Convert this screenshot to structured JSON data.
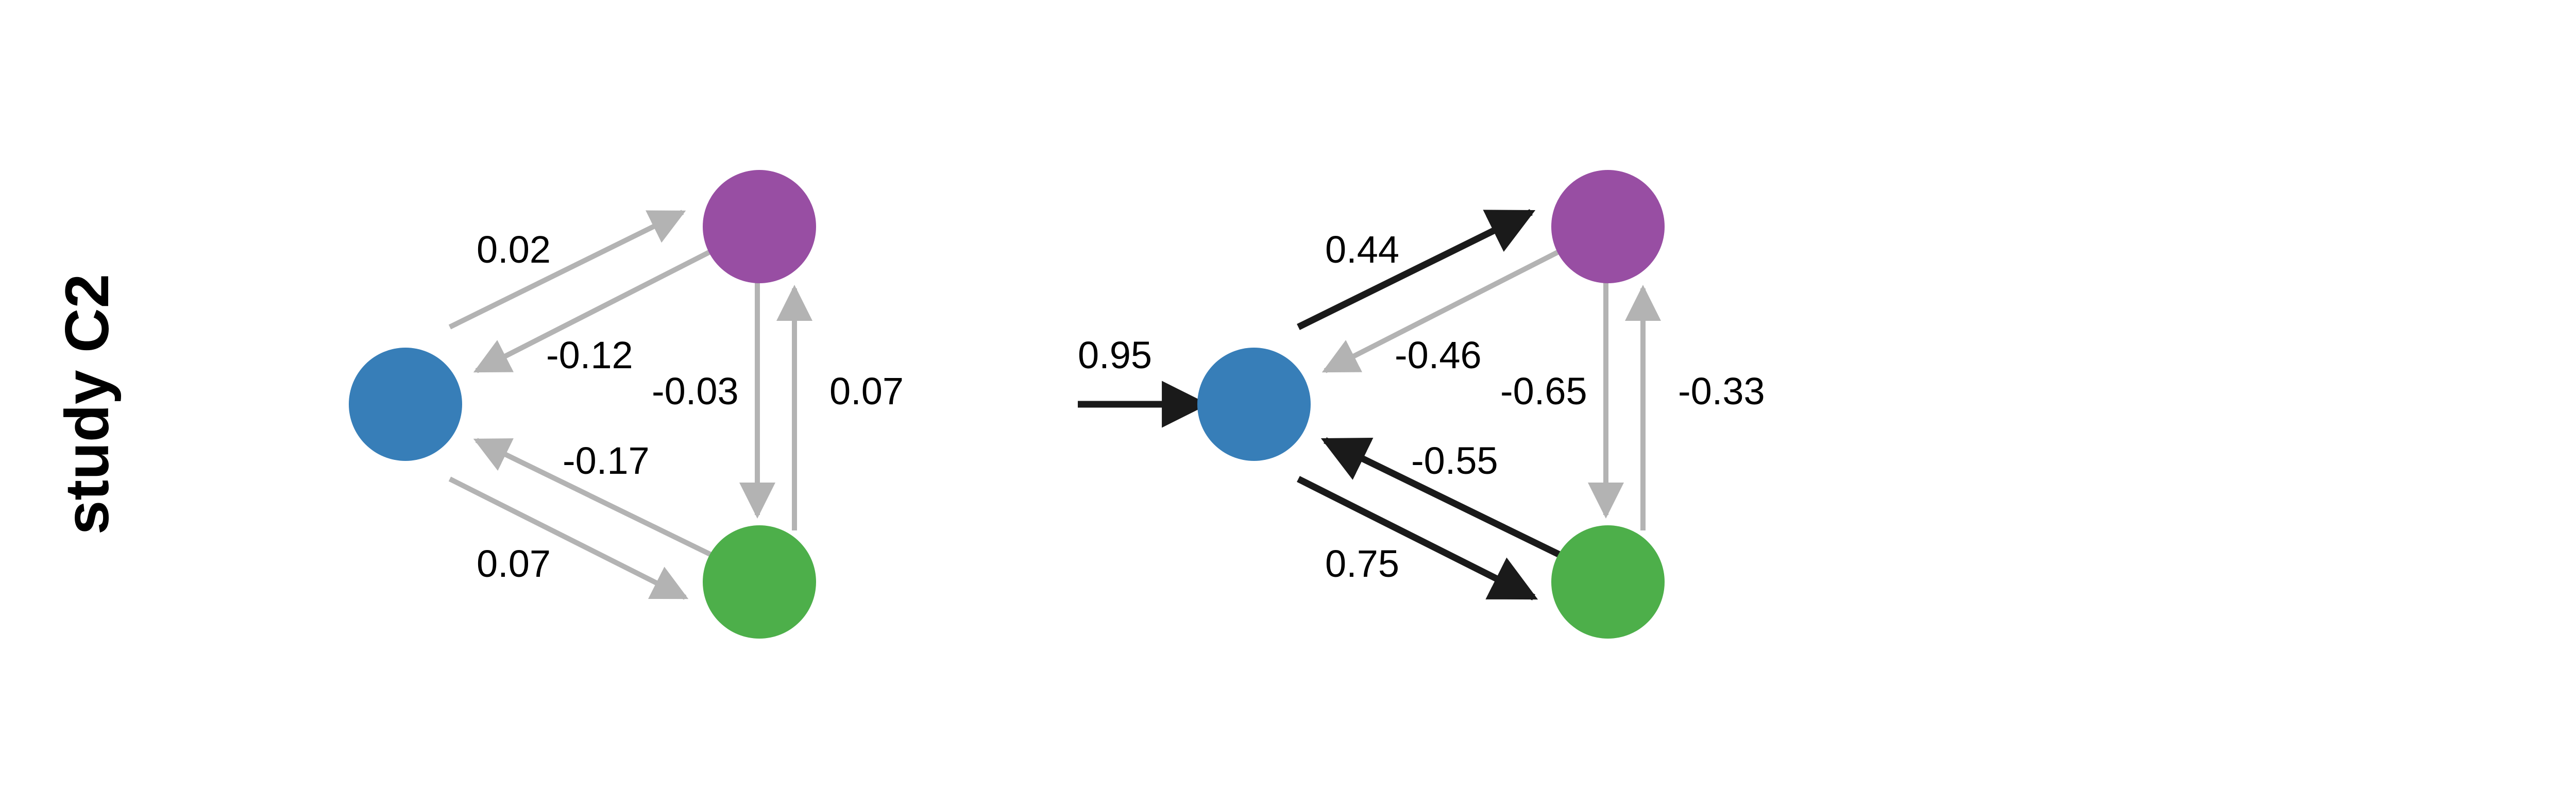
{
  "row_label": "study C2",
  "colors": {
    "node_a": "#377eb8",
    "node_b": "#984ea3",
    "node_c": "#4daf4a",
    "edge_weak": "#b3b3b3",
    "edge_strong": "#1a1a1a"
  },
  "networks": [
    {
      "edges": {
        "a_to_b": "0.02",
        "b_to_a": "-0.12",
        "b_to_c": "-0.03",
        "c_to_b": "0.07",
        "c_to_a": "-0.17",
        "a_to_c": "0.07"
      },
      "edge_style": {
        "a_to_b": "weak",
        "b_to_a": "weak",
        "b_to_c": "weak",
        "c_to_b": "weak",
        "c_to_a": "weak",
        "a_to_c": "weak"
      }
    },
    {
      "input": "0.95",
      "edges": {
        "a_to_b": "0.44",
        "b_to_a": "-0.46",
        "b_to_c": "-0.65",
        "c_to_b": "-0.33",
        "c_to_a": "-0.55",
        "a_to_c": "0.75"
      },
      "edge_style": {
        "a_to_b": "strong",
        "b_to_a": "weak",
        "b_to_c": "weak",
        "c_to_b": "weak",
        "c_to_a": "strong",
        "a_to_c": "strong"
      }
    }
  ]
}
